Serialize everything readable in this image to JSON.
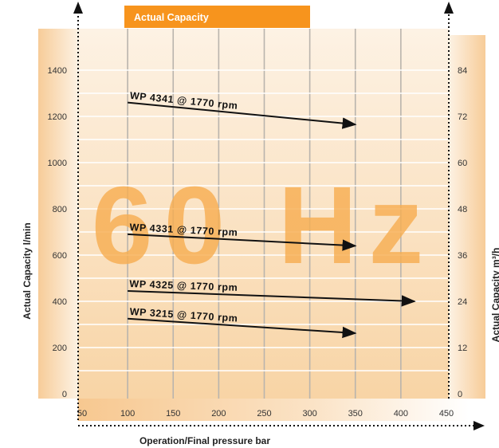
{
  "banner": "Actual Capacity",
  "watermark": "60 Hz",
  "colors": {
    "accent": "#f7941d",
    "background_light": "#fdf1e1",
    "background_dark": "#f9d9ad",
    "line": "#111111"
  },
  "chart_data": {
    "type": "line",
    "title": "",
    "xlabel": "Operation/Final pressure bar",
    "ylabel": "Actual Capacity l/min",
    "ylabel_right": "Actual Capacity m³/h",
    "xlim": [
      50,
      450
    ],
    "ylim": [
      0,
      1400
    ],
    "ylim_right": [
      0,
      84
    ],
    "x_ticks": [
      "50",
      "100",
      "150",
      "200",
      "250",
      "300",
      "350",
      "400",
      "450"
    ],
    "y_ticks": [
      "0",
      "200",
      "400",
      "600",
      "800",
      "1000",
      "1200",
      "1400"
    ],
    "y_ticks_right": [
      "0",
      "12",
      "24",
      "36",
      "48",
      "60",
      "72",
      "84"
    ],
    "grid": true,
    "series": [
      {
        "name": "WP 4341 @ 1770 rpm",
        "x": [
          100,
          350
        ],
        "y": [
          1260,
          1165
        ]
      },
      {
        "name": "WP 4331 @ 1770 rpm",
        "x": [
          100,
          350
        ],
        "y": [
          690,
          640
        ]
      },
      {
        "name": "WP 4325 @ 1770 rpm",
        "x": [
          100,
          415
        ],
        "y": [
          445,
          400
        ]
      },
      {
        "name": "WP 3215 @ 1770 rpm",
        "x": [
          100,
          350
        ],
        "y": [
          325,
          262
        ]
      }
    ]
  }
}
